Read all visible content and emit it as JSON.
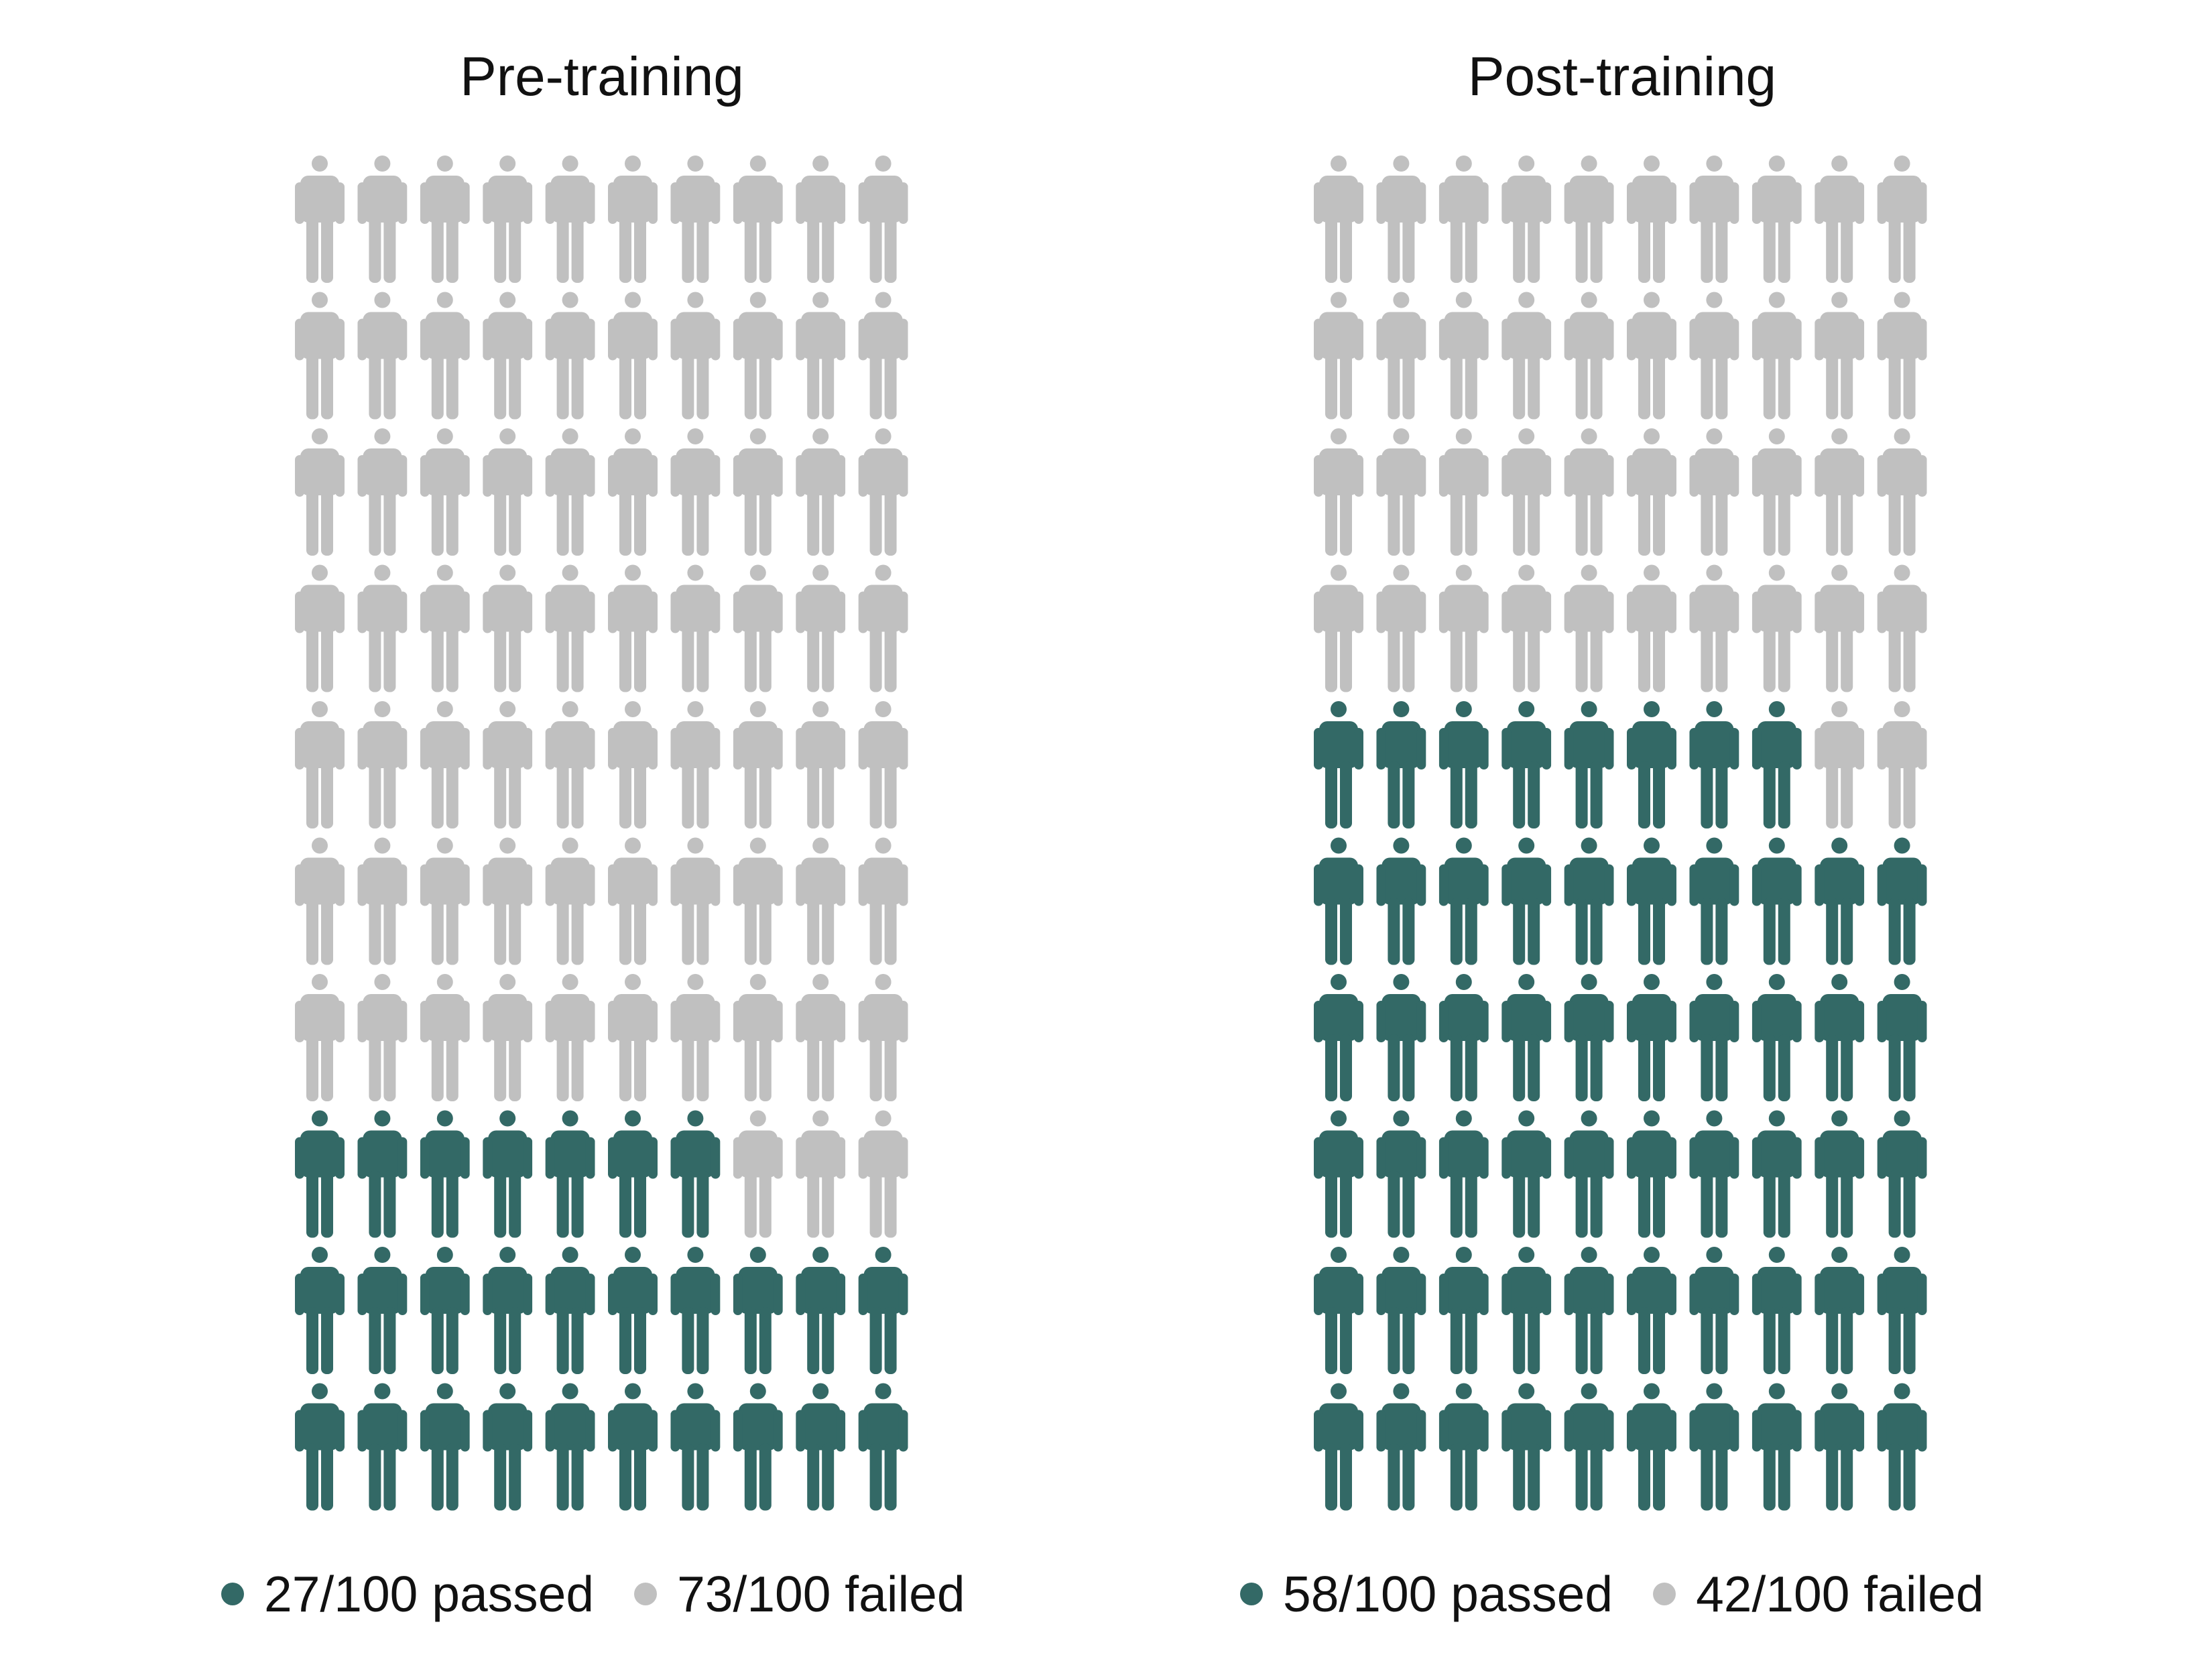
{
  "chart_data": [
    {
      "type": "pictogram",
      "title": "Pre-training",
      "total": 100,
      "columns": 10,
      "rows": 10,
      "fill_order": "bottom-up, left-to-right",
      "series": [
        {
          "key": "passed",
          "value": 27,
          "color": "#336966",
          "legend_label": "27/100 passed"
        },
        {
          "key": "failed",
          "value": 73,
          "color": "#c0c0c0",
          "legend_label": "73/100 failed"
        }
      ],
      "legend_position": "bottom",
      "icon": "person-icon"
    },
    {
      "type": "pictogram",
      "title": "Post-training",
      "total": 100,
      "columns": 10,
      "rows": 10,
      "fill_order": "bottom-up, left-to-right",
      "series": [
        {
          "key": "passed",
          "value": 58,
          "color": "#336966",
          "legend_label": "58/100 passed"
        },
        {
          "key": "failed",
          "value": 42,
          "color": "#c0c0c0",
          "legend_label": "42/100 failed"
        }
      ],
      "legend_position": "bottom",
      "icon": "person-icon"
    }
  ]
}
